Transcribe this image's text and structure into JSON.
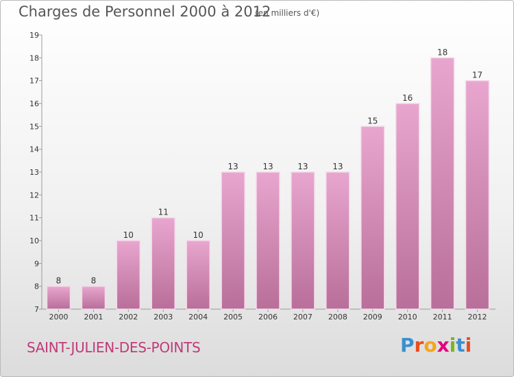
{
  "header": {
    "title": "Charges de Personnel 2000 à 2012",
    "unit_note": "(en milliers d'€)"
  },
  "footer": {
    "commune": "SAINT-JULIEN-DES-POINTS",
    "logo_letters": [
      "P",
      "r",
      "o",
      "x",
      "i",
      "t",
      "i"
    ],
    "logo_colors": [
      "#3a8fd0",
      "#e94e1b",
      "#f3a61c",
      "#e6007e",
      "#7ab51d",
      "#3a8fd0",
      "#e94e1b"
    ]
  },
  "colors": {
    "bar_top": "#e8a6cf",
    "bar_bottom": "#b86f99",
    "bar_stroke": "#f6d9ea",
    "commune": "#c0397a"
  },
  "chart_data": {
    "type": "bar",
    "categories": [
      "2000",
      "2001",
      "2002",
      "2003",
      "2004",
      "2005",
      "2006",
      "2007",
      "2008",
      "2009",
      "2010",
      "2011",
      "2012"
    ],
    "values": [
      8,
      8,
      10,
      11,
      10,
      13,
      13,
      13,
      13,
      15,
      16,
      18,
      17
    ],
    "title": "Charges de Personnel 2000 à 2012",
    "ylim": [
      7,
      19
    ],
    "yticks": [
      7,
      8,
      9,
      10,
      11,
      12,
      13,
      14,
      15,
      16,
      17,
      18,
      19
    ],
    "grid": false,
    "show_data_labels": true
  }
}
